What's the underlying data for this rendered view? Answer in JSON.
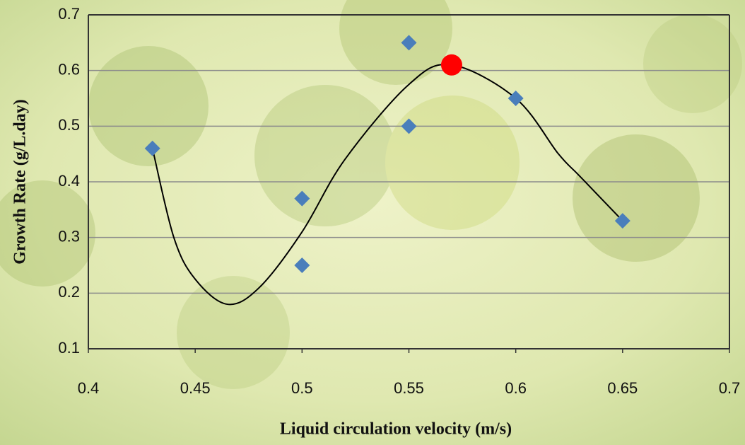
{
  "chart_data": {
    "type": "scatter",
    "x_label": "Liquid circulation velocity (m/s)",
    "y_label": "Growth Rate (g/L.day)",
    "xlim": [
      0.4,
      0.7
    ],
    "xticks": [
      0.4,
      0.45,
      0.5,
      0.55,
      0.6,
      0.65,
      0.7
    ],
    "ylim": [
      0.1,
      0.7
    ],
    "yticks": [
      0.1,
      0.2,
      0.3,
      0.4,
      0.5,
      0.6,
      0.7
    ],
    "grid": true,
    "series": [
      {
        "color": "#4a7ebb",
        "marker": "diamond",
        "x": [
          0.43,
          0.5,
          0.5,
          0.55,
          0.55,
          0.6,
          0.65
        ],
        "values": [
          0.46,
          0.37,
          0.25,
          0.65,
          0.5,
          0.55,
          0.33
        ]
      },
      {
        "color": "#ff0000",
        "marker": "circle",
        "x": [
          0.57
        ],
        "values": [
          0.61
        ]
      },
      {
        "color": "#000000",
        "marker": "line",
        "x": [
          0.43,
          0.44,
          0.45,
          0.465,
          0.48,
          0.5,
          0.52,
          0.55,
          0.57,
          0.6,
          0.62,
          0.63,
          0.65
        ],
        "values": [
          0.46,
          0.3,
          0.225,
          0.18,
          0.21,
          0.31,
          0.44,
          0.575,
          0.61,
          0.55,
          0.45,
          0.41,
          0.33
        ]
      }
    ]
  }
}
